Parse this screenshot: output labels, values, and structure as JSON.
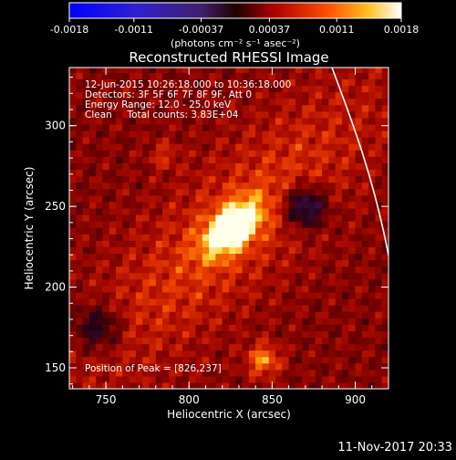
{
  "chart_data": {
    "type": "heatmap",
    "title": "Reconstructed RHESSI Image",
    "xlabel": "Heliocentric X (arcsec)",
    "ylabel": "Heliocentric Y (arcsec)",
    "xlim": [
      728,
      920
    ],
    "ylim": [
      137,
      336
    ],
    "xticks": [
      "750",
      "800",
      "850",
      "900"
    ],
    "yticks": [
      "150",
      "200",
      "250",
      "300"
    ],
    "colorbar": {
      "min": -0.0018,
      "max": 0.0018,
      "ticks": [
        "-0.0018",
        "-0.0011",
        "-0.00037",
        "0.00037",
        "0.0011",
        "0.0018"
      ],
      "unit": "(photons cm⁻² s⁻¹ asec⁻²)",
      "colors": [
        "#0000ff",
        "#5a00a0",
        "#000000",
        "#c00000",
        "#ff6a00",
        "#ffffff"
      ]
    },
    "annotations": [
      "12-Jun-2015 10:26:18.000 to 10:36:18.000",
      "Detectors: 3F 5F 6F 7F 8F 9F, Att 0",
      "Energy Range: 12.0 - 25.0 keV",
      "Clean     Total counts: 3.83E+04"
    ],
    "peak_label": "Position of Peak = [826,237]",
    "peak": {
      "x": 826,
      "y": 237
    },
    "limb_color": "#ffffff"
  },
  "footer": {
    "timestamp": "11-Nov-2017 20:33"
  }
}
